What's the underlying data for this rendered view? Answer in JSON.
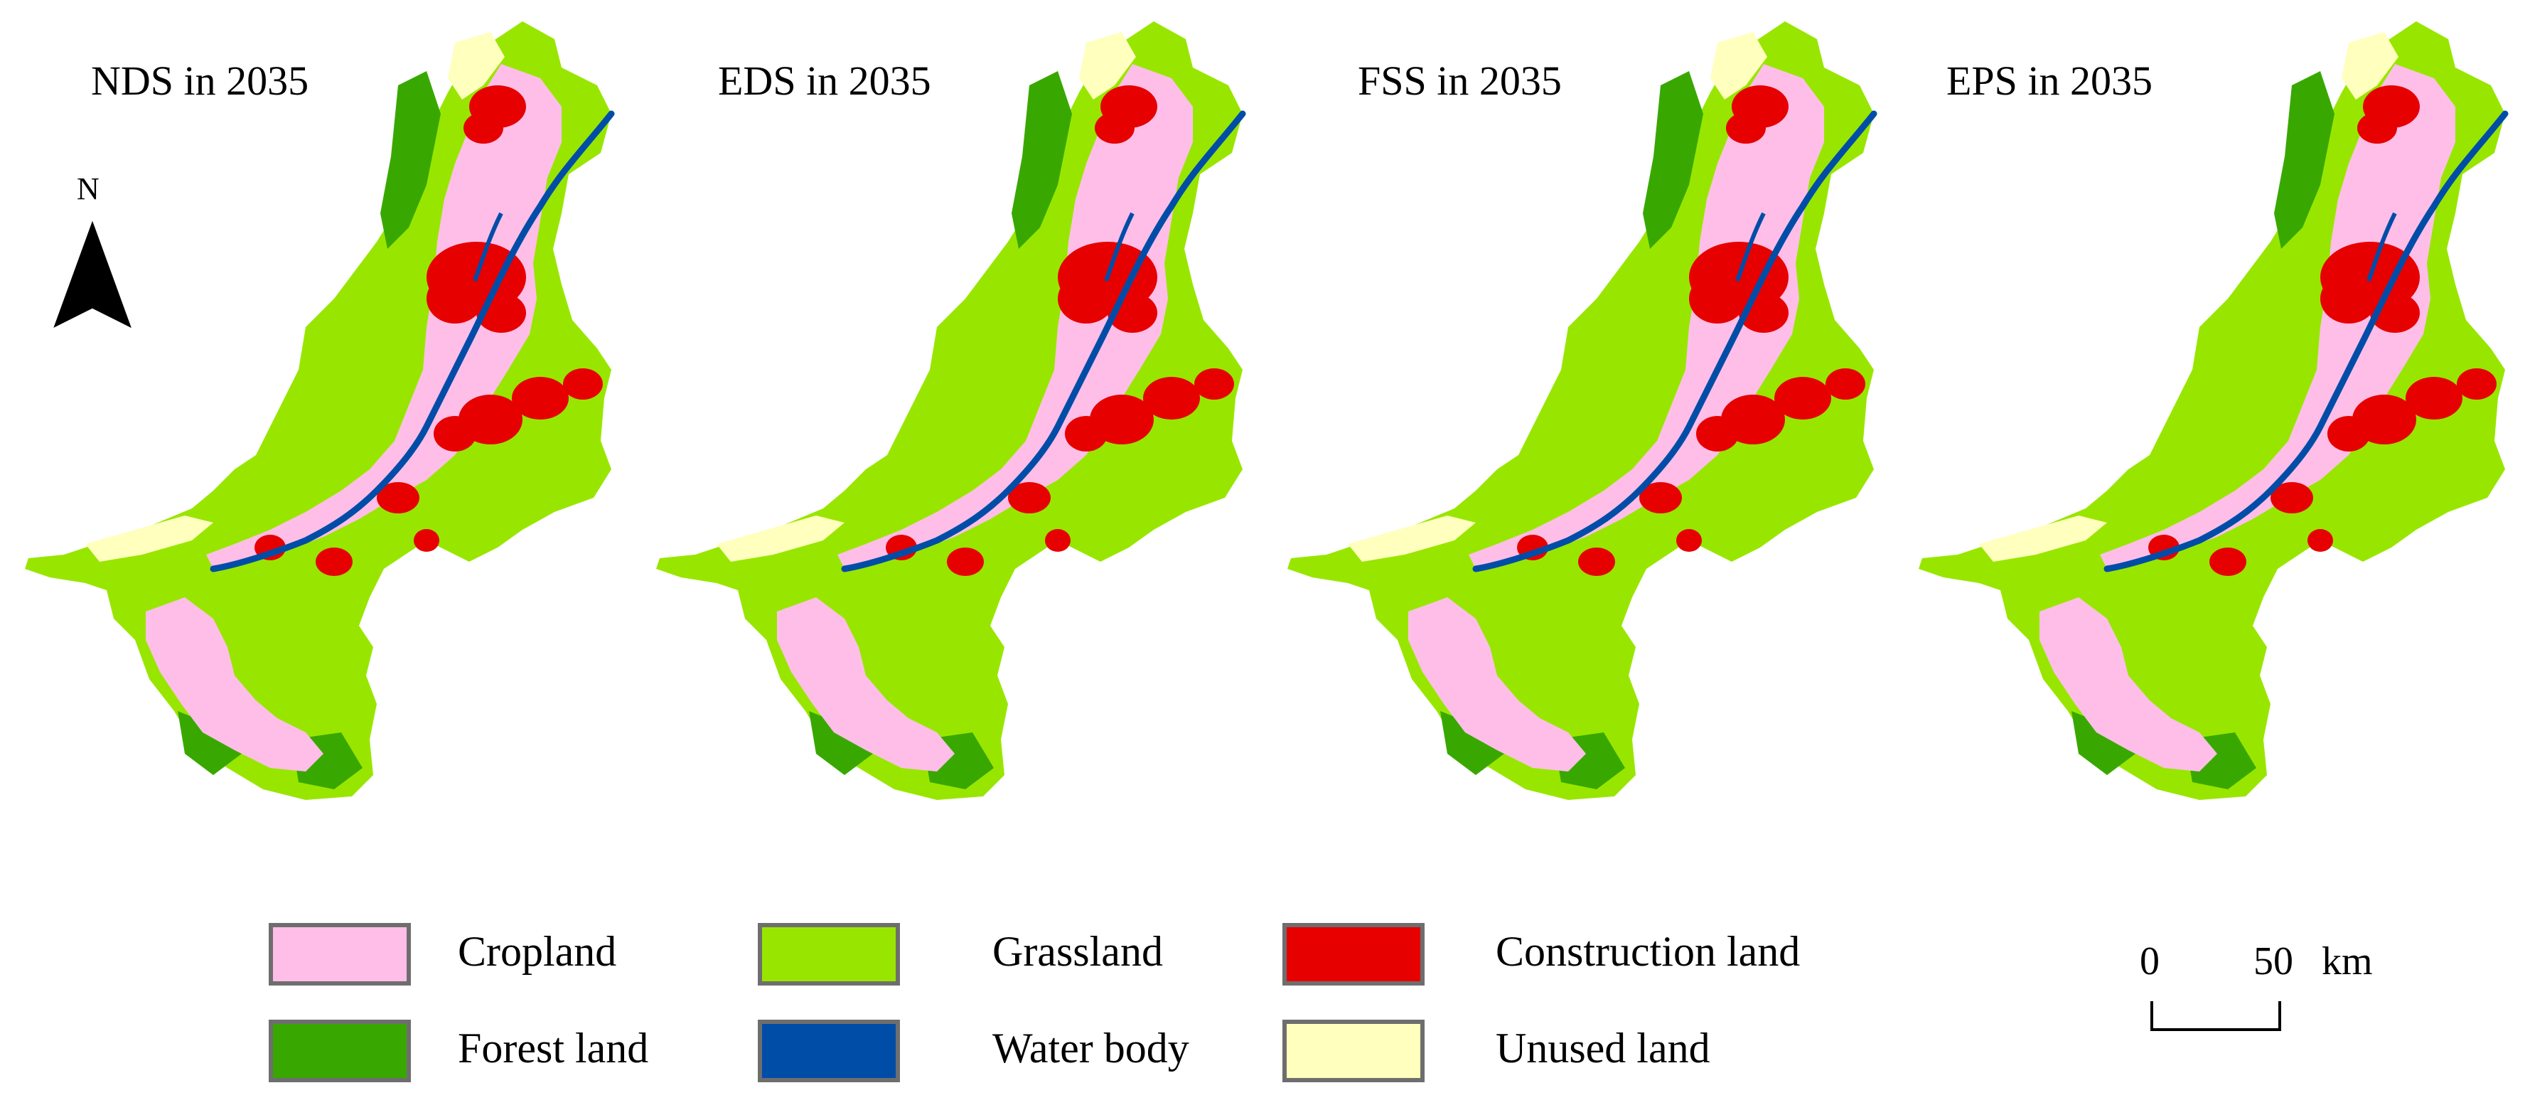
{
  "panels": [
    {
      "title": "NDS in 2035"
    },
    {
      "title": "EDS in 2035"
    },
    {
      "title": "FSS in 2035"
    },
    {
      "title": "EPS in 2035"
    }
  ],
  "north_arrow": {
    "label": "N"
  },
  "legend": [
    {
      "label": "Cropland",
      "color": "#ffbee8"
    },
    {
      "label": "Grassland",
      "color": "#98e600"
    },
    {
      "label": "Construction land",
      "color": "#e60000"
    },
    {
      "label": "Forest land",
      "color": "#38a800"
    },
    {
      "label": "Water body",
      "color": "#004da8"
    },
    {
      "label": "Unused land",
      "color": "#ffffbe"
    }
  ],
  "scale_bar": {
    "start_label": "0",
    "end_label": "50",
    "unit": "km"
  }
}
